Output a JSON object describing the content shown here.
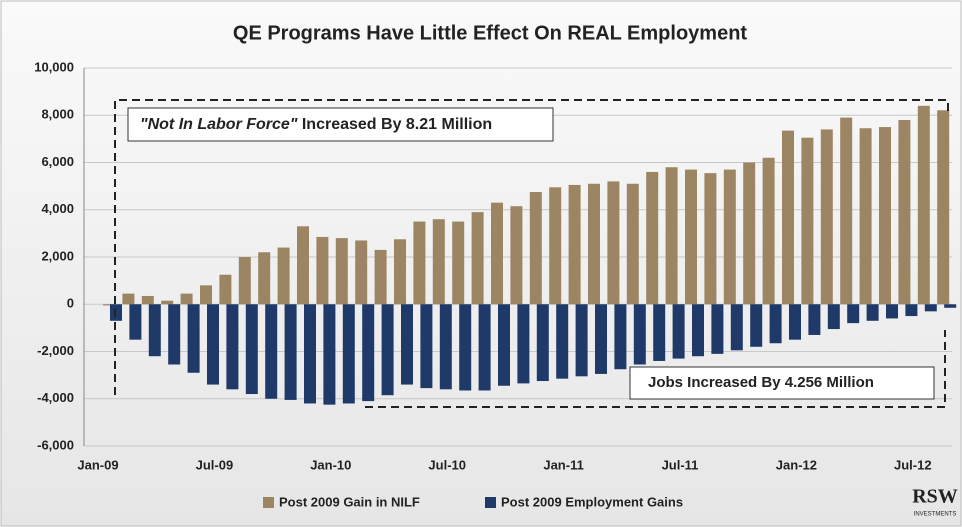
{
  "chart_data": {
    "type": "bar",
    "title": "QE Programs Have Little Effect On REAL Employment",
    "categories": [
      "Jan-09",
      null,
      null,
      null,
      null,
      null,
      "Jul-09",
      null,
      null,
      null,
      null,
      null,
      "Jan-10",
      null,
      null,
      null,
      null,
      null,
      "Jul-10",
      null,
      null,
      null,
      null,
      null,
      "Jan-11",
      null,
      null,
      null,
      null,
      null,
      "Jul-11",
      null,
      null,
      null,
      null,
      null,
      "Jan-12",
      null,
      null,
      null,
      null,
      null,
      "Jul-12",
      null
    ],
    "series": [
      {
        "name": "Post 2009 Gain in NILF",
        "color": "#9c8563",
        "values": [
          -50,
          450,
          350,
          150,
          450,
          800,
          1250,
          2000,
          2200,
          2400,
          3300,
          2850,
          2800,
          2700,
          2300,
          2750,
          3500,
          3600,
          3500,
          3900,
          4300,
          4150,
          4750,
          4950,
          5050,
          5100,
          5200,
          5100,
          5600,
          5800,
          5700,
          5550,
          5700,
          6000,
          6200,
          7350,
          7050,
          7400,
          7900,
          7450,
          7500,
          7800,
          8400,
          8210
        ]
      },
      {
        "name": "Post 2009 Employment Gains",
        "color": "#1f3a68",
        "values": [
          -700,
          -1500,
          -2200,
          -2550,
          -2900,
          -3400,
          -3600,
          -3800,
          -4000,
          -4050,
          -4200,
          -4250,
          -4200,
          -4100,
          -3850,
          -3400,
          -3550,
          -3600,
          -3650,
          -3650,
          -3450,
          -3350,
          -3250,
          -3150,
          -3050,
          -2950,
          -2750,
          -2550,
          -2400,
          -2300,
          -2200,
          -2100,
          -1950,
          -1800,
          -1650,
          -1500,
          -1300,
          -1050,
          -800,
          -700,
          -600,
          -500,
          -300,
          -150
        ]
      }
    ],
    "ylim": [
      -6000,
      10000
    ],
    "yticks": [
      {
        "value": -6000,
        "label": "-6,000"
      },
      {
        "value": -4000,
        "label": "-4,000"
      },
      {
        "value": -2000,
        "label": "-2,000"
      },
      0,
      {
        "value": 2000,
        "label": "2,000"
      },
      {
        "value": 4000,
        "label": "4,000"
      },
      {
        "value": 6000,
        "label": "6,000"
      },
      {
        "value": 8000,
        "label": "8,000"
      },
      {
        "value": 10000,
        "label": "10,000"
      }
    ],
    "grid": true,
    "legend": "bottom",
    "annotations": [
      {
        "italic": "\"Not In Labor Force\"",
        "text": " Increased By 8.21 Million"
      },
      {
        "text": "Jobs Increased By 4.256 Million"
      }
    ],
    "logo": {
      "text": "RSW",
      "subtext": "INVESTMENTS"
    }
  }
}
